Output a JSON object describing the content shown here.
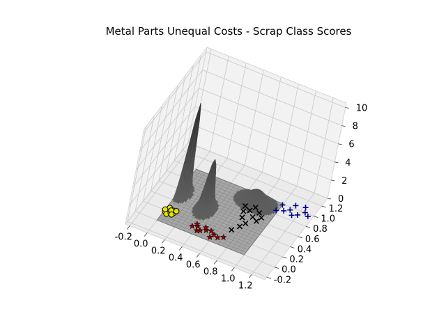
{
  "chart_data": {
    "type": "3d-surface-scatter",
    "title": "Metal Parts Unequal Costs - Scrap Class Scores",
    "x_axis": {
      "label": "",
      "ticks": [
        "-0.2",
        "0.0",
        "0.2",
        "0.4",
        "0.6",
        "0.8",
        "1.0",
        "1.2"
      ],
      "range": [
        -0.25,
        1.35
      ]
    },
    "y_axis": {
      "label": "",
      "ticks": [
        "-0.2",
        "0.0",
        "0.2",
        "0.4",
        "0.6",
        "0.8",
        "1.0",
        "1.2"
      ],
      "range": [
        -0.25,
        1.35
      ]
    },
    "z_axis": {
      "label": "",
      "ticks": [
        "0",
        "2",
        "4",
        "6",
        "8",
        "10"
      ],
      "range": [
        0,
        10.5
      ]
    },
    "grid": true,
    "surface": {
      "description": "Density-shaped score surface over the unit square; floor plane at z=0.",
      "color": "#555555",
      "peaks": [
        {
          "x": 0.05,
          "y": 0.55,
          "height": 10.0,
          "sx": 0.03,
          "sy": 0.06
        },
        {
          "x": 0.35,
          "y": 0.45,
          "height": 5.5,
          "sx": 0.04,
          "sy": 0.07
        },
        {
          "x": 0.75,
          "y": 0.85,
          "height": 1.4,
          "sx": 0.1,
          "sy": 0.08
        }
      ]
    },
    "series": [
      {
        "marker": "circle",
        "color": "#e6e600",
        "edge": "#000000",
        "points": [
          [
            0.02,
            0.22,
            0
          ],
          [
            0.05,
            0.2,
            0
          ],
          [
            0.08,
            0.24,
            0
          ],
          [
            0.01,
            0.18,
            0
          ],
          [
            0.04,
            0.15,
            0
          ],
          [
            0.07,
            0.19,
            0
          ],
          [
            0.1,
            0.21,
            0
          ],
          [
            0.03,
            0.26,
            0
          ],
          [
            0.06,
            0.23,
            0
          ],
          [
            0.09,
            0.17,
            0
          ],
          [
            0.0,
            0.21,
            0
          ],
          [
            0.11,
            0.25,
            0
          ]
        ]
      },
      {
        "marker": "star",
        "color": "#8b0000",
        "points": [
          [
            0.35,
            0.12,
            0
          ],
          [
            0.4,
            0.15,
            0
          ],
          [
            0.45,
            0.1,
            0
          ],
          [
            0.5,
            0.14,
            0
          ],
          [
            0.55,
            0.16,
            0
          ],
          [
            0.6,
            0.12,
            0
          ],
          [
            0.42,
            0.08,
            0
          ],
          [
            0.48,
            0.18,
            0
          ],
          [
            0.65,
            0.1,
            0
          ],
          [
            0.7,
            0.14,
            0
          ],
          [
            0.38,
            0.18,
            0
          ],
          [
            0.58,
            0.06,
            0
          ]
        ]
      },
      {
        "marker": "x",
        "color": "#000000",
        "points": [
          [
            0.75,
            0.7,
            0
          ],
          [
            0.78,
            0.78,
            0
          ],
          [
            0.82,
            0.62,
            0
          ],
          [
            0.7,
            0.65,
            0
          ],
          [
            0.85,
            0.72,
            0
          ],
          [
            0.73,
            0.55,
            0
          ],
          [
            0.8,
            0.48,
            0
          ],
          [
            0.88,
            0.58,
            0
          ],
          [
            0.77,
            0.4,
            0
          ],
          [
            0.68,
            0.74,
            0
          ],
          [
            0.9,
            0.66,
            0
          ],
          [
            0.72,
            0.3,
            0
          ]
        ]
      },
      {
        "marker": "plus",
        "color": "#00008b",
        "points": [
          [
            1.05,
            0.9,
            0
          ],
          [
            1.1,
            0.95,
            0
          ],
          [
            1.15,
            0.88,
            0
          ],
          [
            1.2,
            0.92,
            0
          ],
          [
            1.25,
            1.0,
            0
          ],
          [
            1.0,
            0.98,
            0
          ],
          [
            1.12,
            1.05,
            0
          ],
          [
            1.3,
            0.96,
            0
          ],
          [
            0.98,
            0.86,
            0
          ],
          [
            1.22,
            1.08,
            0
          ]
        ]
      }
    ]
  }
}
